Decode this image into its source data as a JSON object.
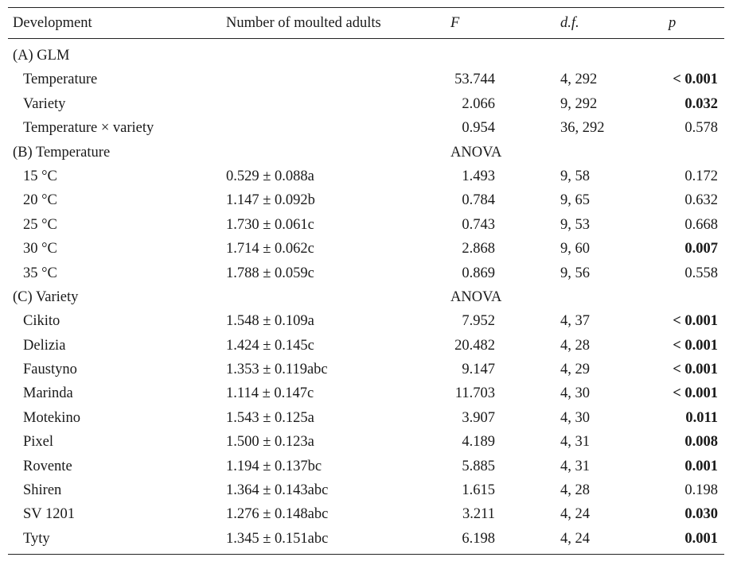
{
  "header": {
    "development": "Development",
    "adults": "Number of moulted adults",
    "f": "F",
    "df": "d.f.",
    "p": "p"
  },
  "rows": [
    {
      "type": "section",
      "name": "(A) GLM",
      "f": ""
    },
    {
      "name": "Temperature",
      "adults": "",
      "f": "53.744",
      "df": "4, 292",
      "p": "< 0.001",
      "bold": true
    },
    {
      "name": "Variety",
      "adults": "",
      "f": "2.066",
      "df": "9, 292",
      "p": "0.032",
      "bold": true
    },
    {
      "name": "Temperature × variety",
      "adults": "",
      "f": "0.954",
      "df": "36, 292",
      "p": "0.578",
      "bold": false
    },
    {
      "type": "section",
      "name": "(B) Temperature",
      "f": "ANOVA"
    },
    {
      "name": "15 °C",
      "adults": "0.529 ± 0.088a",
      "f": "1.493",
      "df": "9, 58",
      "p": "0.172",
      "bold": false
    },
    {
      "name": "20 °C",
      "adults": "1.147 ± 0.092b",
      "f": "0.784",
      "df": "9, 65",
      "p": "0.632",
      "bold": false
    },
    {
      "name": "25 °C",
      "adults": "1.730 ± 0.061c",
      "f": "0.743",
      "df": "9, 53",
      "p": "0.668",
      "bold": false
    },
    {
      "name": "30 °C",
      "adults": "1.714 ± 0.062c",
      "f": "2.868",
      "df": "9, 60",
      "p": "0.007",
      "bold": true
    },
    {
      "name": "35 °C",
      "adults": "1.788 ± 0.059c",
      "f": "0.869",
      "df": "9, 56",
      "p": "0.558",
      "bold": false
    },
    {
      "type": "section",
      "name": "(C) Variety",
      "f": "ANOVA"
    },
    {
      "name": "Cikito",
      "adults": "1.548 ± 0.109a",
      "f": "7.952",
      "df": "4, 37",
      "p": "< 0.001",
      "bold": true
    },
    {
      "name": "Delizia",
      "adults": "1.424 ± 0.145c",
      "f": "20.482",
      "df": "4, 28",
      "p": "< 0.001",
      "bold": true
    },
    {
      "name": "Faustyno",
      "adults": "1.353 ± 0.119abc",
      "f": "9.147",
      "df": "4, 29",
      "p": "< 0.001",
      "bold": true
    },
    {
      "name": "Marinda",
      "adults": "1.114 ± 0.147c",
      "f": "11.703",
      "df": "4, 30",
      "p": "< 0.001",
      "bold": true
    },
    {
      "name": "Motekino",
      "adults": "1.543 ± 0.125a",
      "f": "3.907",
      "df": "4, 30",
      "p": "0.011",
      "bold": true
    },
    {
      "name": "Pixel",
      "adults": "1.500 ± 0.123a",
      "f": "4.189",
      "df": "4, 31",
      "p": "0.008",
      "bold": true
    },
    {
      "name": "Rovente",
      "adults": "1.194 ± 0.137bc",
      "f": "5.885",
      "df": "4, 31",
      "p": "0.001",
      "bold": true
    },
    {
      "name": "Shiren",
      "adults": "1.364 ± 0.143abc",
      "f": "1.615",
      "df": "4, 28",
      "p": "0.198",
      "bold": false
    },
    {
      "name": "SV 1201",
      "adults": "1.276 ± 0.148abc",
      "f": "3.211",
      "df": "4, 24",
      "p": "0.030",
      "bold": true
    },
    {
      "name": "Tyty",
      "adults": "1.345 ± 0.151abc",
      "f": "6.198",
      "df": "4, 24",
      "p": "0.001",
      "bold": true
    }
  ]
}
